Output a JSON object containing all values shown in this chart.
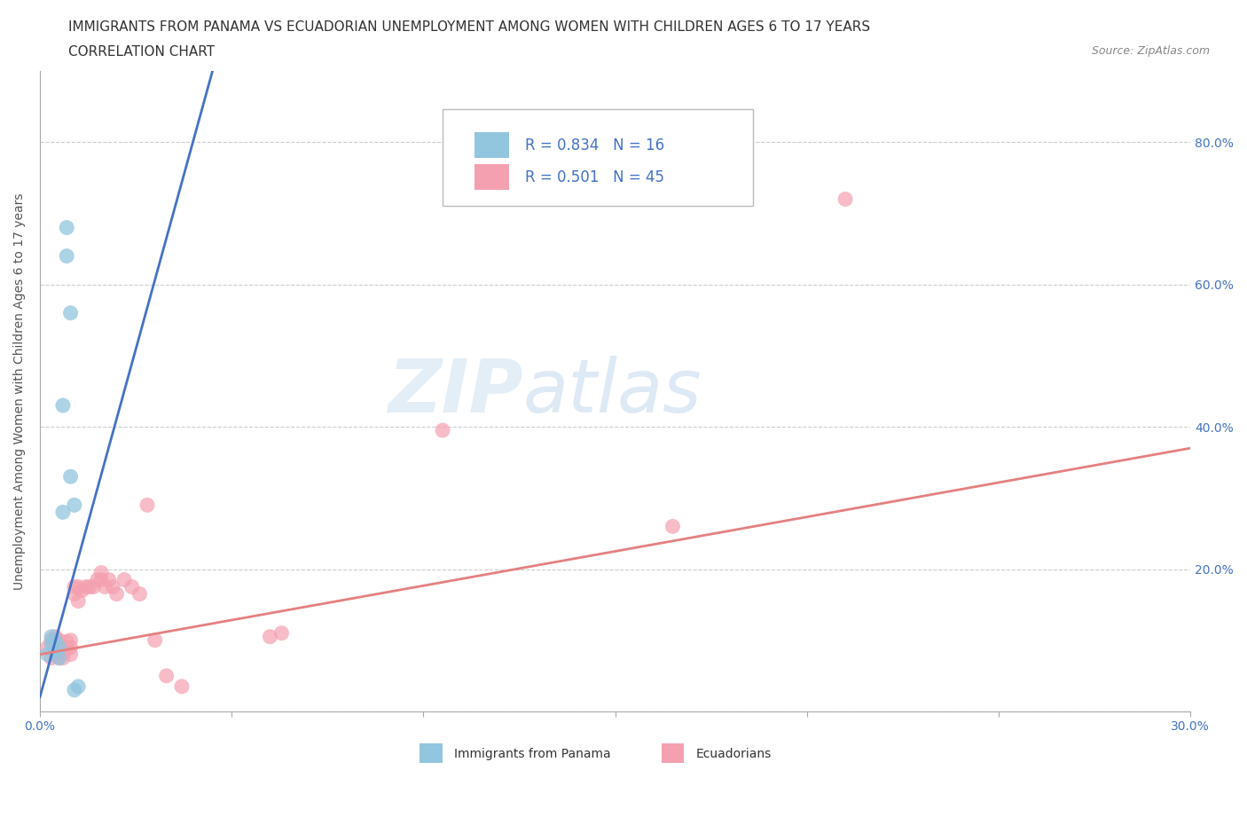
{
  "title_line1": "IMMIGRANTS FROM PANAMA VS ECUADORIAN UNEMPLOYMENT AMONG WOMEN WITH CHILDREN AGES 6 TO 17 YEARS",
  "title_line2": "CORRELATION CHART",
  "source": "Source: ZipAtlas.com",
  "ylabel": "Unemployment Among Women with Children Ages 6 to 17 years",
  "xlim": [
    0.0,
    0.3
  ],
  "ylim": [
    0.0,
    0.9
  ],
  "x_ticks": [
    0.0,
    0.05,
    0.1,
    0.15,
    0.2,
    0.25,
    0.3
  ],
  "y_ticks": [
    0.0,
    0.2,
    0.4,
    0.6,
    0.8
  ],
  "background_color": "#ffffff",
  "grid_color": "#cccccc",
  "watermark_zip": "ZIP",
  "watermark_atlas": "atlas",
  "panama_R": 0.834,
  "panama_N": 16,
  "ecuador_R": 0.501,
  "ecuador_N": 45,
  "panama_color": "#92C5DE",
  "ecuador_color": "#F4A0B0",
  "panama_line_color": "#4472C4",
  "ecuador_line_color": "#E48080",
  "panama_scatter_x": [
    0.002,
    0.003,
    0.003,
    0.004,
    0.004,
    0.005,
    0.005,
    0.006,
    0.006,
    0.007,
    0.007,
    0.008,
    0.008,
    0.009,
    0.009,
    0.01
  ],
  "panama_scatter_y": [
    0.08,
    0.095,
    0.105,
    0.085,
    0.1,
    0.075,
    0.09,
    0.43,
    0.28,
    0.68,
    0.64,
    0.56,
    0.33,
    0.29,
    0.03,
    0.035
  ],
  "ecuador_scatter_x": [
    0.002,
    0.003,
    0.003,
    0.004,
    0.004,
    0.004,
    0.005,
    0.005,
    0.005,
    0.005,
    0.006,
    0.006,
    0.006,
    0.007,
    0.007,
    0.008,
    0.008,
    0.008,
    0.009,
    0.009,
    0.01,
    0.01,
    0.011,
    0.012,
    0.013,
    0.014,
    0.015,
    0.016,
    0.016,
    0.017,
    0.018,
    0.019,
    0.02,
    0.022,
    0.024,
    0.026,
    0.028,
    0.03,
    0.033,
    0.037,
    0.06,
    0.063,
    0.105,
    0.165,
    0.21
  ],
  "ecuador_scatter_y": [
    0.09,
    0.075,
    0.1,
    0.08,
    0.09,
    0.105,
    0.075,
    0.08,
    0.09,
    0.1,
    0.075,
    0.082,
    0.092,
    0.088,
    0.098,
    0.08,
    0.09,
    0.1,
    0.165,
    0.175,
    0.155,
    0.175,
    0.17,
    0.175,
    0.175,
    0.175,
    0.185,
    0.195,
    0.185,
    0.175,
    0.185,
    0.175,
    0.165,
    0.185,
    0.175,
    0.165,
    0.29,
    0.1,
    0.05,
    0.035,
    0.105,
    0.11,
    0.395,
    0.26,
    0.72
  ],
  "panama_trendline_x": [
    0.0,
    0.045
  ],
  "panama_trendline_y": [
    0.02,
    0.9
  ],
  "ecuador_trendline_x": [
    0.0,
    0.3
  ],
  "ecuador_trendline_y": [
    0.08,
    0.37
  ],
  "legend_panama_label": "Immigrants from Panama",
  "legend_ecuador_label": "Ecuadorians",
  "title_fontsize": 11,
  "subtitle_fontsize": 11,
  "source_fontsize": 9,
  "axis_label_fontsize": 10,
  "tick_fontsize": 10,
  "legend_fontsize": 12
}
